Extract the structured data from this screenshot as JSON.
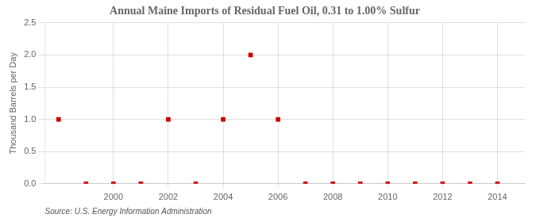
{
  "chart_data": {
    "type": "scatter",
    "title": "Annual Maine Imports of Residual Fuel Oil, 0.31 to 1.00% Sulfur",
    "y_label": "Thousand Barrels per Day",
    "annotation": "Source: U.S. Energy Information Administration",
    "x": [
      1998,
      1999,
      2000,
      2001,
      2002,
      2003,
      2004,
      2005,
      2006,
      2007,
      2008,
      2009,
      2010,
      2011,
      2012,
      2013,
      2014
    ],
    "values": [
      1.0,
      0.0,
      0.0,
      0.0,
      1.0,
      0.0,
      1.0,
      2.0,
      1.0,
      0.0,
      0.0,
      0.0,
      0.0,
      0.0,
      0.0,
      0.0,
      0.0
    ],
    "color": "#cc0000",
    "marker": "square",
    "xlim": [
      1997.5,
      2015.0
    ],
    "xticks": [
      2000,
      2002,
      2004,
      2006,
      2008,
      2010,
      2012,
      2014
    ],
    "ylim": [
      0.0,
      2.5
    ],
    "yticks": [
      {
        "value": 0.0,
        "label": "0.0"
      },
      0.5,
      {
        "value": 1.0,
        "label": "1.0"
      },
      1.5,
      {
        "value": 2.0,
        "label": "2.0"
      },
      2.5
    ],
    "grid": true,
    "legend": false
  }
}
